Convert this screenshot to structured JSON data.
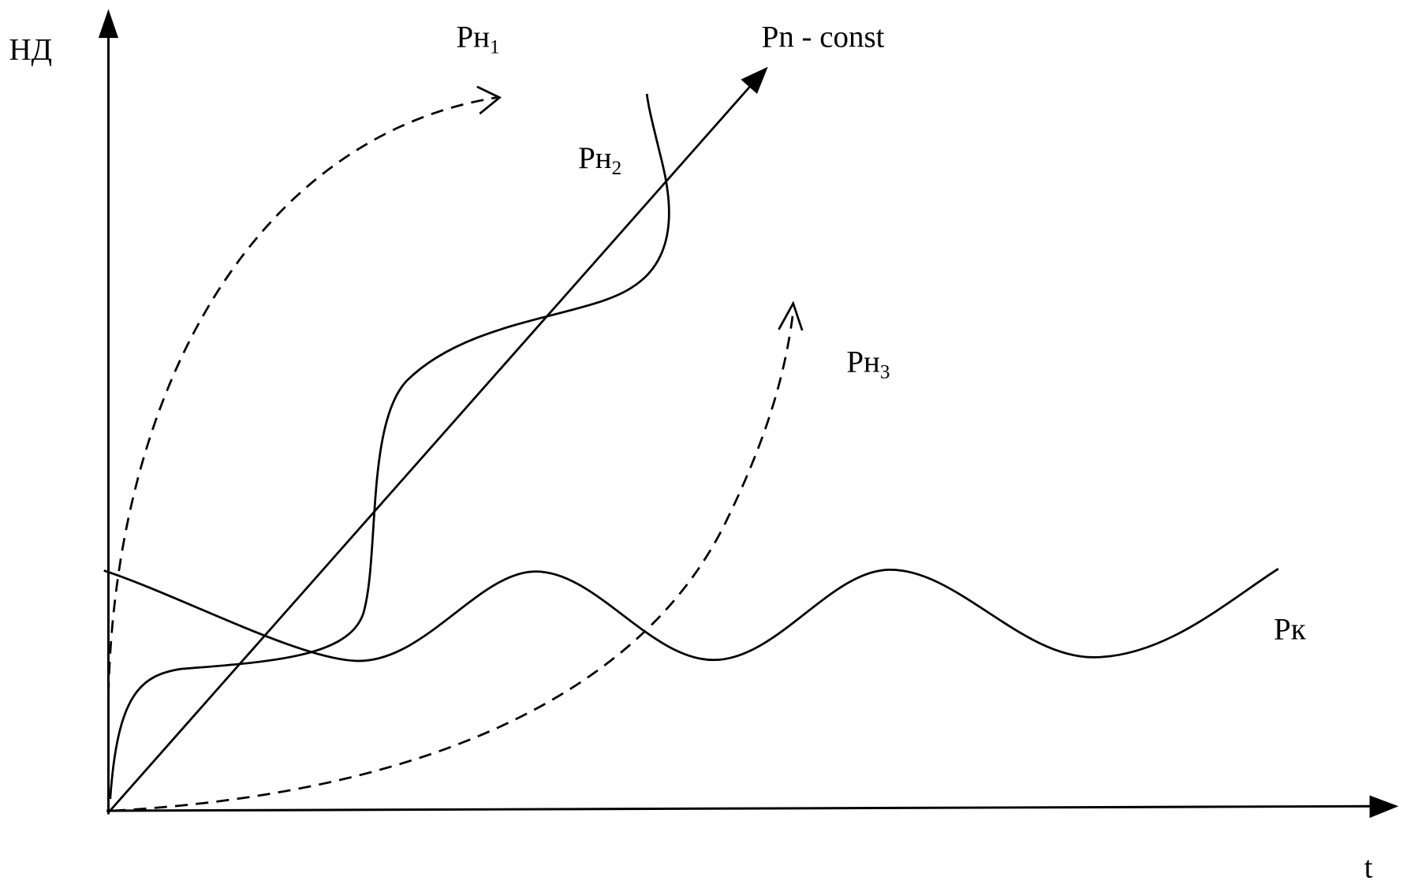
{
  "axes": {
    "y_label": "НД",
    "x_label": "t"
  },
  "curves": [
    {
      "text": "Pn - const"
    },
    {
      "text": "Рн",
      "subscript": "1"
    },
    {
      "text": "Рн",
      "subscript": "2"
    },
    {
      "text": "Рн",
      "subscript": "3"
    },
    {
      "text": "Рк"
    }
  ]
}
